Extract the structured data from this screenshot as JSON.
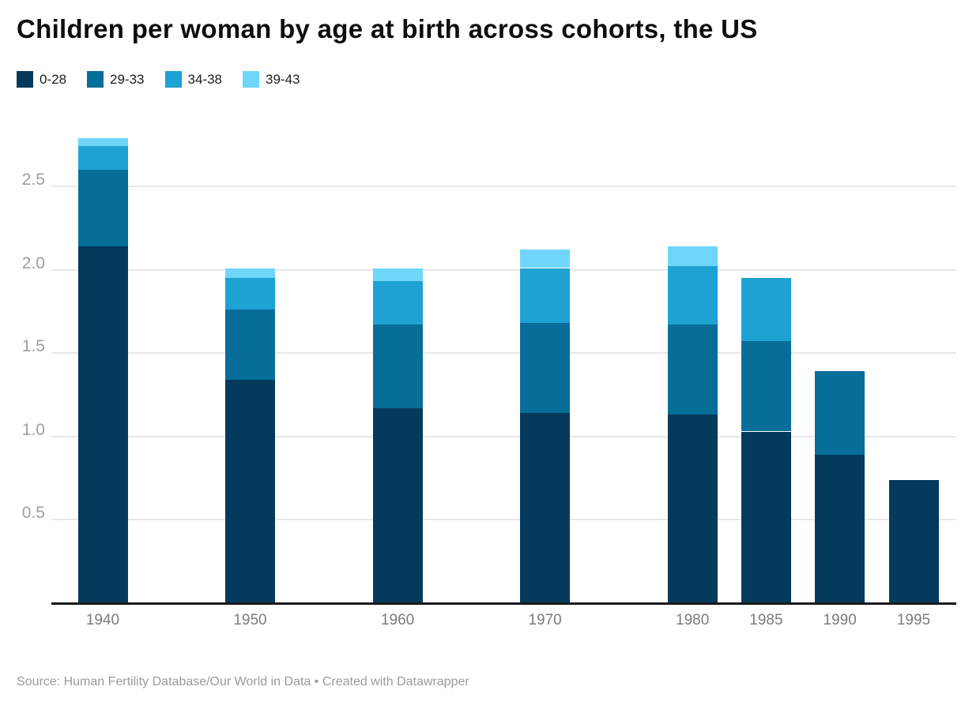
{
  "footer": {
    "prefix": "Source: ",
    "source_link": "Human Fertility Database/Our World in Data",
    "separator": " • ",
    "created_prefix": "Created with ",
    "tool_link": "Datawrapper"
  },
  "chart_data": {
    "type": "bar",
    "stacked": true,
    "title": "Children per woman by age at birth across cohorts, the US",
    "xlabel": "",
    "ylabel": "",
    "categories": [
      "1940",
      "1950",
      "1960",
      "1970",
      "1980",
      "1985",
      "1990",
      "1995"
    ],
    "x_years": [
      1940,
      1950,
      1960,
      1970,
      1980,
      1985,
      1990,
      1995
    ],
    "x_axis_scale": "linear-years",
    "series": [
      {
        "name": "0-28",
        "color": "#043a5c",
        "values": [
          2.14,
          1.34,
          1.17,
          1.14,
          1.13,
          1.03,
          0.89,
          0.74
        ]
      },
      {
        "name": "29-33",
        "color": "#066e99",
        "values": [
          0.46,
          0.42,
          0.5,
          0.54,
          0.54,
          0.54,
          0.5,
          0
        ]
      },
      {
        "name": "34-38",
        "color": "#1ea2d3",
        "values": [
          0.14,
          0.19,
          0.26,
          0.33,
          0.35,
          0.38,
          0,
          0
        ]
      },
      {
        "name": "39-43",
        "color": "#70d6f9",
        "values": [
          0.05,
          0.06,
          0.08,
          0.11,
          0.12,
          0,
          0,
          0
        ]
      }
    ],
    "totals": [
      2.79,
      2.01,
      2.01,
      2.12,
      2.14,
      1.95,
      1.39,
      0.74
    ],
    "y_ticks": [
      0.5,
      1.0,
      1.5,
      2.0,
      2.5
    ],
    "y_tick_labels": [
      "0.5",
      "1.0",
      "1.5",
      "2.0",
      "2.5"
    ],
    "ylim": [
      0,
      2.9
    ],
    "grid": true,
    "legend_position": "top-left",
    "colors": {
      "gridline": "#e7e7e7",
      "axis": "#1a1a1c",
      "y_tick_text": "#a0a0a0",
      "x_tick_text": "#7b7b7b",
      "title_text": "#0d0d0d",
      "footer_text": "#9b9b9b",
      "background": "#ffffff"
    }
  }
}
